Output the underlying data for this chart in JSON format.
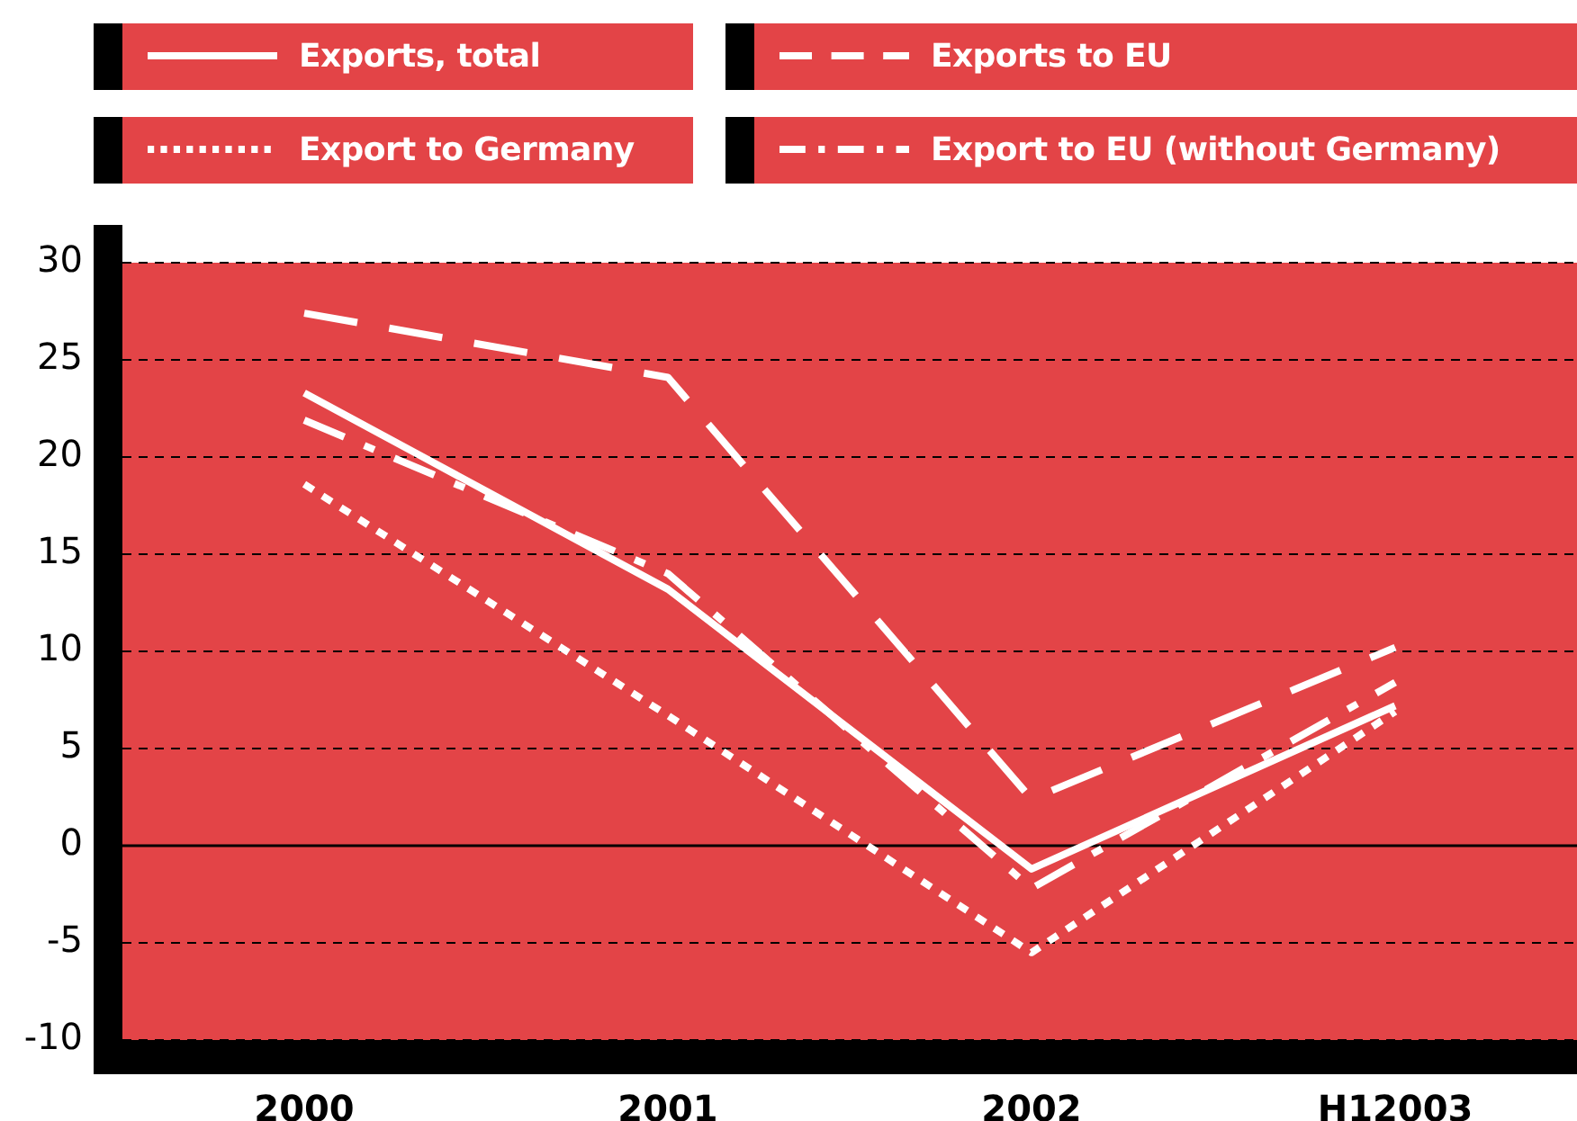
{
  "chart_data": {
    "type": "line",
    "categories": [
      "2000",
      "2001",
      "2002",
      "H12003"
    ],
    "series": [
      {
        "name": "Exports, total",
        "color": "#ffffff",
        "line_style": "solid",
        "values": [
          23.3,
          13.2,
          -1.2,
          7.2
        ]
      },
      {
        "name": "Exports to EU",
        "color": "#ffffff",
        "line_style": "dashed",
        "values": [
          27.4,
          24.1,
          2.4,
          10.2
        ]
      },
      {
        "name": "Export to Germany",
        "color": "#ffffff",
        "line_style": "dotted",
        "values": [
          18.6,
          6.7,
          -5.5,
          6.9
        ]
      },
      {
        "name": "Export to EU (without Germany)",
        "color": "#ffffff",
        "line_style": "dashed",
        "values": [
          21.9,
          14,
          -2.2,
          8.4
        ]
      }
    ],
    "ylim": [
      -10,
      30
    ],
    "yticks": [
      -10,
      -5,
      0,
      5,
      10,
      15,
      20,
      25,
      30
    ],
    "grid": "y",
    "legend": "top",
    "marker": "none",
    "ref_lines": [
      {
        "axis": "y",
        "value": 0,
        "color": "#000000",
        "line_style": "solid"
      }
    ]
  }
}
